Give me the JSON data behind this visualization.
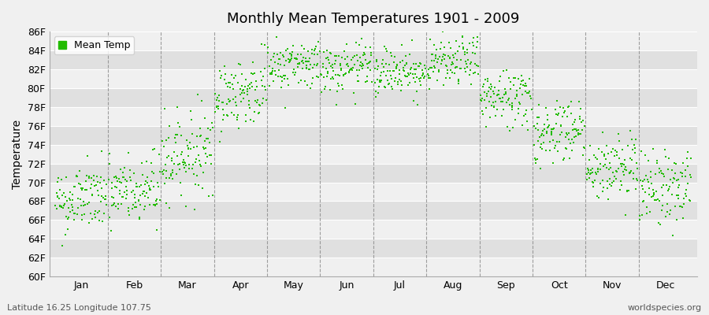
{
  "title": "Monthly Mean Temperatures 1901 - 2009",
  "ylabel": "Temperature",
  "bottom_left_text": "Latitude 16.25 Longitude 107.75",
  "bottom_right_text": "worldspecies.org",
  "legend_label": "Mean Temp",
  "dot_color": "#22bb00",
  "ylim": [
    60,
    86
  ],
  "yticks": [
    60,
    62,
    64,
    66,
    68,
    70,
    72,
    74,
    76,
    78,
    80,
    82,
    84,
    86
  ],
  "months": [
    "Jan",
    "Feb",
    "Mar",
    "Apr",
    "May",
    "Jun",
    "Jul",
    "Aug",
    "Sep",
    "Oct",
    "Nov",
    "Dec"
  ],
  "monthly_means_F": [
    68.2,
    69.0,
    73.0,
    79.5,
    82.5,
    82.0,
    81.8,
    82.7,
    79.0,
    75.5,
    71.5,
    69.5
  ],
  "monthly_std_F": [
    1.8,
    2.0,
    2.2,
    1.8,
    1.3,
    1.3,
    1.3,
    1.3,
    1.6,
    1.8,
    1.8,
    2.0
  ],
  "monthly_trend_F": [
    0.5,
    0.5,
    1.0,
    1.0,
    0.5,
    0.5,
    0.5,
    0.5,
    0.5,
    0.5,
    0.5,
    0.5
  ],
  "n_years": 109,
  "seed": 42,
  "stripe_colors": [
    "#f0f0f0",
    "#e0e0e0"
  ],
  "grid_line_color": "#ffffff",
  "dashed_line_color": "#888888",
  "background_color": "#f0f0f0"
}
